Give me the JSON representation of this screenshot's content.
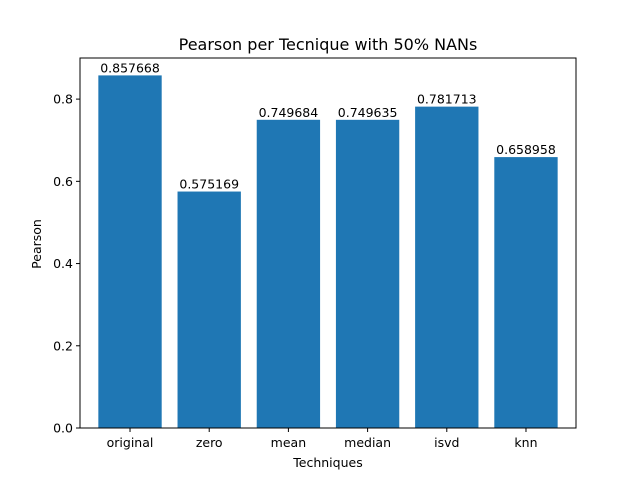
{
  "chart_data": {
    "type": "bar",
    "title": "Pearson per Tecnique with 50% NANs",
    "xlabel": "Techniques",
    "ylabel": "Pearson",
    "categories": [
      "original",
      "zero",
      "mean",
      "median",
      "isvd",
      "knn"
    ],
    "values": [
      0.857668,
      0.575169,
      0.749684,
      0.749635,
      0.781713,
      0.658958
    ],
    "value_labels": [
      "0.857668",
      "0.575169",
      "0.749684",
      "0.749635",
      "0.781713",
      "0.658958"
    ],
    "ylim": [
      0,
      0.9
    ],
    "yticks": [
      0.0,
      0.2,
      0.4,
      0.6,
      0.8
    ],
    "ytick_labels": [
      "0.0",
      "0.2",
      "0.4",
      "0.6",
      "0.8"
    ],
    "bar_color": "#1f77b4",
    "grid": false,
    "legend": false
  }
}
